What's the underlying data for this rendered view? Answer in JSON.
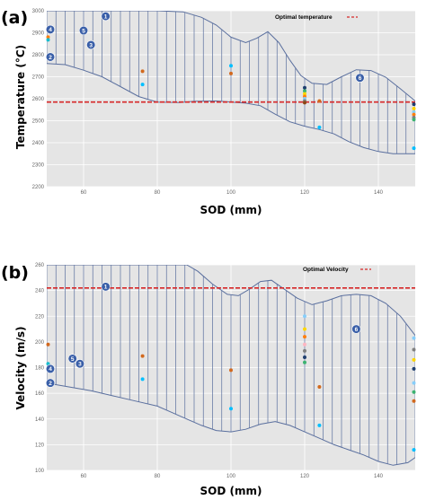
{
  "colors": {
    "band": "#5a6f9e",
    "optimal_line": "#d62728",
    "marker_fill": "#3a5fa8",
    "plot_bg": "#e5e5e5",
    "grid": "#ffffff"
  },
  "chart_data": [
    {
      "type": "scatter",
      "panel_label": "(a)",
      "title": "",
      "xlabel": "SOD (mm)",
      "ylabel": "Temperature (°C)",
      "xlim": [
        50,
        150
      ],
      "ylim": [
        2200,
        3000
      ],
      "xticks": [
        60,
        80,
        100,
        120,
        140
      ],
      "yticks": [
        2200,
        2300,
        2400,
        2500,
        2600,
        2700,
        2800,
        2900,
        3000
      ],
      "grid": true,
      "legend": {
        "position": "top-right",
        "entries": [
          {
            "label": "Optimal temperature",
            "style": "red dashed line"
          }
        ]
      },
      "optimal_value": 2585,
      "band": {
        "upper": [
          [
            50,
            3000
          ],
          [
            60,
            3000
          ],
          [
            70,
            3000
          ],
          [
            80,
            3000
          ],
          [
            87,
            2995
          ],
          [
            92,
            2970
          ],
          [
            96,
            2935
          ],
          [
            100,
            2880
          ],
          [
            104,
            2855
          ],
          [
            107,
            2875
          ],
          [
            110,
            2905
          ],
          [
            113,
            2855
          ],
          [
            116,
            2775
          ],
          [
            119,
            2705
          ],
          [
            122,
            2670
          ],
          [
            126,
            2665
          ],
          [
            130,
            2700
          ],
          [
            134,
            2732
          ],
          [
            138,
            2728
          ],
          [
            142,
            2698
          ],
          [
            146,
            2645
          ],
          [
            150,
            2590
          ]
        ],
        "lower": [
          [
            50,
            2760
          ],
          [
            55,
            2755
          ],
          [
            60,
            2730
          ],
          [
            65,
            2700
          ],
          [
            70,
            2655
          ],
          [
            75,
            2610
          ],
          [
            80,
            2585
          ],
          [
            86,
            2583
          ],
          [
            90,
            2588
          ],
          [
            96,
            2590
          ],
          [
            100,
            2585
          ],
          [
            104,
            2580
          ],
          [
            108,
            2568
          ],
          [
            112,
            2530
          ],
          [
            116,
            2495
          ],
          [
            120,
            2475
          ],
          [
            124,
            2460
          ],
          [
            128,
            2440
          ],
          [
            132,
            2405
          ],
          [
            136,
            2378
          ],
          [
            140,
            2360
          ],
          [
            144,
            2350
          ],
          [
            150,
            2350
          ]
        ]
      },
      "points": [
        {
          "x": 50,
          "y": 2880,
          "color": "#ff7f0e"
        },
        {
          "x": 50,
          "y": 2868,
          "color": "#17becf"
        },
        {
          "x": 76,
          "y": 2725,
          "color": "#d2691e"
        },
        {
          "x": 76,
          "y": 2665,
          "color": "#00bfff"
        },
        {
          "x": 100,
          "y": 2750,
          "color": "#00bfff"
        },
        {
          "x": 100,
          "y": 2715,
          "color": "#d2691e"
        },
        {
          "x": 120,
          "y": 2650,
          "color": "#1f3f6f"
        },
        {
          "x": 120,
          "y": 2635,
          "color": "#3cb371"
        },
        {
          "x": 120,
          "y": 2622,
          "color": "#ffd700"
        },
        {
          "x": 120,
          "y": 2610,
          "color": "#ff7f0e"
        },
        {
          "x": 120,
          "y": 2600,
          "color": "#87cefa"
        },
        {
          "x": 120,
          "y": 2590,
          "color": "#808080"
        },
        {
          "x": 120,
          "y": 2582,
          "color": "#8b4513"
        },
        {
          "x": 124,
          "y": 2590,
          "color": "#d2691e"
        },
        {
          "x": 124,
          "y": 2470,
          "color": "#00bfff"
        },
        {
          "x": 150,
          "y": 2575,
          "color": "#1f3f6f"
        },
        {
          "x": 150,
          "y": 2555,
          "color": "#ffd700"
        },
        {
          "x": 150,
          "y": 2540,
          "color": "#87cefa"
        },
        {
          "x": 150,
          "y": 2528,
          "color": "#ff7f0e"
        },
        {
          "x": 150,
          "y": 2515,
          "color": "#808080"
        },
        {
          "x": 150,
          "y": 2505,
          "color": "#3cb371"
        },
        {
          "x": 150,
          "y": 2375,
          "color": "#00bfff"
        }
      ],
      "markers": [
        {
          "label": "1",
          "x": 66,
          "y": 2975
        },
        {
          "label": "4",
          "x": 50,
          "y": 2915
        },
        {
          "label": "5",
          "x": 60,
          "y": 2910
        },
        {
          "label": "3",
          "x": 62,
          "y": 2845
        },
        {
          "label": "2",
          "x": 50,
          "y": 2790
        },
        {
          "label": "6",
          "x": 135,
          "y": 2695
        }
      ]
    },
    {
      "type": "scatter",
      "panel_label": "(b)",
      "title": "",
      "xlabel": "SOD (mm)",
      "ylabel": "Velocity (m/s)",
      "xlim": [
        50,
        150
      ],
      "ylim": [
        100,
        260
      ],
      "xticks": [
        60,
        80,
        100,
        120,
        140
      ],
      "yticks": [
        100,
        120,
        140,
        160,
        180,
        200,
        220,
        240,
        260
      ],
      "grid": true,
      "legend": {
        "position": "top-right",
        "entries": [
          {
            "label": "Optimal Velocity",
            "style": "red dashed line"
          }
        ]
      },
      "optimal_value": 242,
      "band": {
        "upper": [
          [
            50,
            260
          ],
          [
            60,
            260
          ],
          [
            70,
            260
          ],
          [
            80,
            260
          ],
          [
            88,
            260
          ],
          [
            91,
            255
          ],
          [
            95,
            245
          ],
          [
            99,
            237
          ],
          [
            102,
            236
          ],
          [
            105,
            241
          ],
          [
            108,
            247
          ],
          [
            111,
            248
          ],
          [
            114,
            242
          ],
          [
            118,
            234
          ],
          [
            122,
            229
          ],
          [
            126,
            232
          ],
          [
            130,
            236
          ],
          [
            134,
            237
          ],
          [
            138,
            236
          ],
          [
            142,
            230
          ],
          [
            146,
            220
          ],
          [
            150,
            205
          ]
        ],
        "lower": [
          [
            50,
            168
          ],
          [
            56,
            165
          ],
          [
            62,
            162
          ],
          [
            68,
            158
          ],
          [
            74,
            154
          ],
          [
            80,
            150
          ],
          [
            84,
            145
          ],
          [
            88,
            140
          ],
          [
            92,
            135
          ],
          [
            96,
            131
          ],
          [
            100,
            130
          ],
          [
            104,
            132
          ],
          [
            108,
            136
          ],
          [
            112,
            138
          ],
          [
            116,
            135
          ],
          [
            120,
            130
          ],
          [
            124,
            125
          ],
          [
            128,
            120
          ],
          [
            132,
            116
          ],
          [
            136,
            112
          ],
          [
            140,
            107
          ],
          [
            144,
            104
          ],
          [
            148,
            106
          ],
          [
            150,
            110
          ]
        ]
      },
      "points": [
        {
          "x": 50,
          "y": 198,
          "color": "#d2691e"
        },
        {
          "x": 50,
          "y": 183,
          "color": "#17becf"
        },
        {
          "x": 76,
          "y": 189,
          "color": "#d2691e"
        },
        {
          "x": 76,
          "y": 171,
          "color": "#00bfff"
        },
        {
          "x": 100,
          "y": 178,
          "color": "#d2691e"
        },
        {
          "x": 100,
          "y": 148,
          "color": "#00bfff"
        },
        {
          "x": 120,
          "y": 220,
          "color": "#87cefa"
        },
        {
          "x": 120,
          "y": 210,
          "color": "#ffd700"
        },
        {
          "x": 120,
          "y": 204,
          "color": "#ff7f0e"
        },
        {
          "x": 120,
          "y": 198,
          "color": "#ffb6c1"
        },
        {
          "x": 120,
          "y": 193,
          "color": "#808080"
        },
        {
          "x": 120,
          "y": 188,
          "color": "#1f3f6f"
        },
        {
          "x": 120,
          "y": 184,
          "color": "#3cb371"
        },
        {
          "x": 124,
          "y": 165,
          "color": "#d2691e"
        },
        {
          "x": 124,
          "y": 135,
          "color": "#00bfff"
        },
        {
          "x": 150,
          "y": 203,
          "color": "#87cefa"
        },
        {
          "x": 150,
          "y": 194,
          "color": "#808080"
        },
        {
          "x": 150,
          "y": 186,
          "color": "#ffd700"
        },
        {
          "x": 150,
          "y": 179,
          "color": "#1f3f6f"
        },
        {
          "x": 150,
          "y": 168,
          "color": "#87cefa"
        },
        {
          "x": 150,
          "y": 161,
          "color": "#3cb371"
        },
        {
          "x": 150,
          "y": 154,
          "color": "#d2691e"
        },
        {
          "x": 150,
          "y": 116,
          "color": "#00bfff"
        }
      ],
      "markers": [
        {
          "label": "1",
          "x": 66,
          "y": 243
        },
        {
          "label": "5",
          "x": 57,
          "y": 187
        },
        {
          "label": "3",
          "x": 59,
          "y": 183
        },
        {
          "label": "4",
          "x": 50,
          "y": 179
        },
        {
          "label": "2",
          "x": 50,
          "y": 168
        },
        {
          "label": "6",
          "x": 134,
          "y": 210
        }
      ]
    }
  ]
}
